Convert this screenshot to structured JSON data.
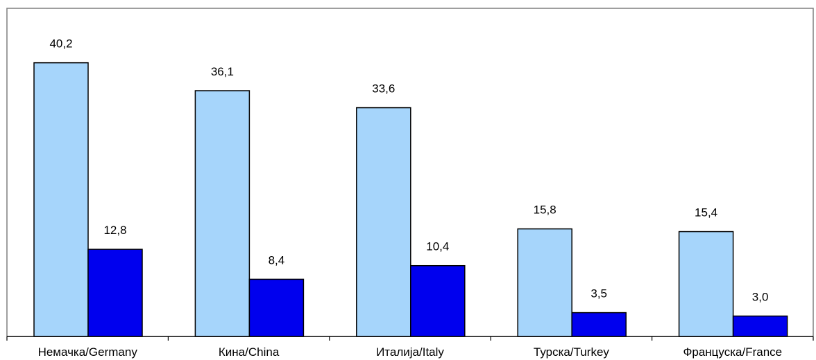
{
  "chart_data": {
    "type": "bar",
    "categories": [
      "Немачка/Germany",
      "Кина/China",
      "Италија/Italy",
      "Турска/Turkey",
      "Француска/France"
    ],
    "series": [
      {
        "values": [
          40.2,
          36.1,
          33.6,
          15.8,
          15.4
        ],
        "value_labels": [
          "40,2",
          "36,1",
          "33,6",
          "15,8",
          "15,4"
        ],
        "color": "#A6D5FB"
      },
      {
        "values": [
          12.8,
          8.4,
          10.4,
          3.5,
          3.0
        ],
        "value_labels": [
          "12,8",
          "8,4",
          "10,4",
          "3,5",
          "3,0"
        ],
        "color": "#0000EE"
      }
    ],
    "title": "",
    "xlabel": "",
    "ylabel": "",
    "ylim": [
      0,
      48.2
    ],
    "grid": false,
    "legend": "none",
    "plot_border_color": "#7F7F7F"
  }
}
